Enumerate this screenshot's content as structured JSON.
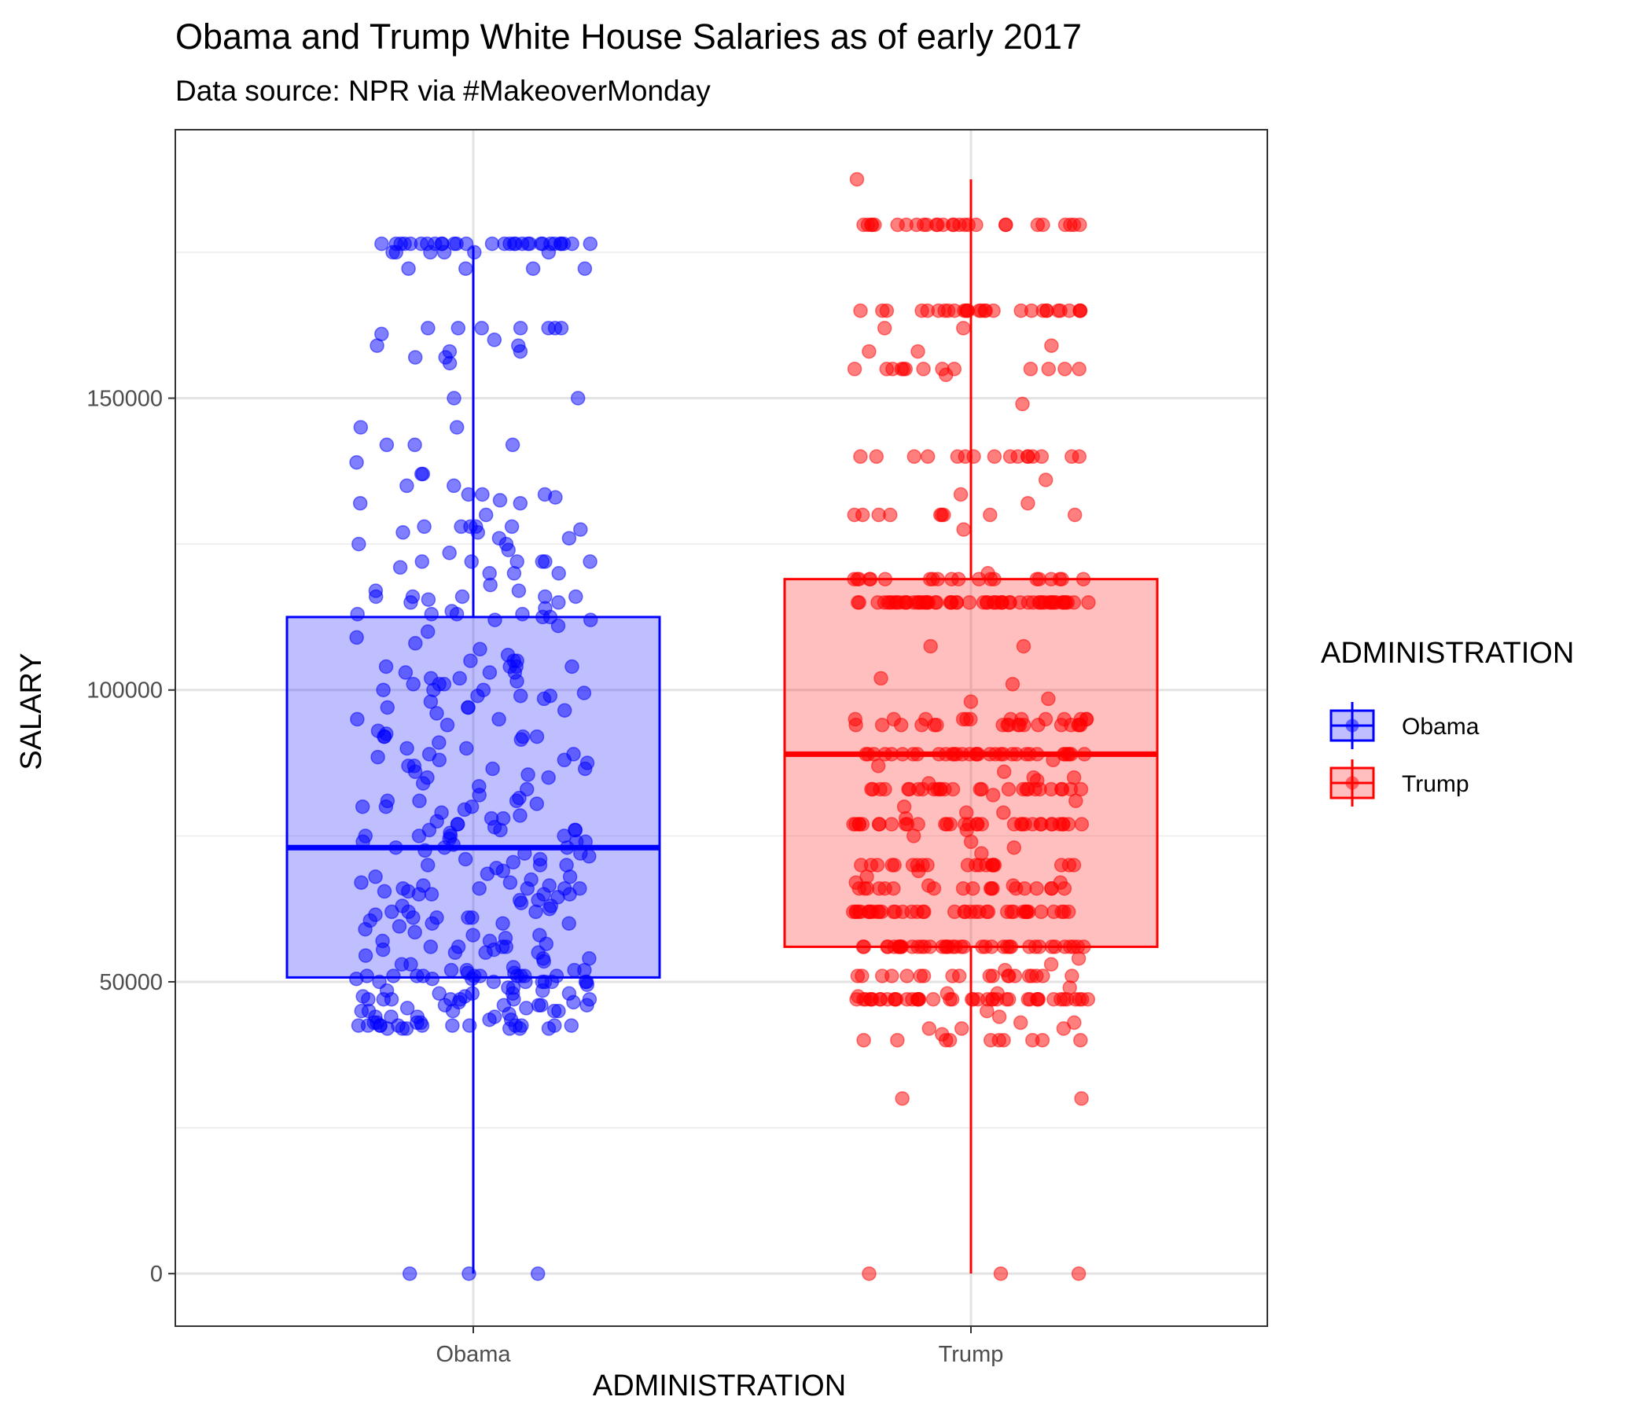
{
  "chart_data": {
    "type": "boxplot",
    "title": "Obama and Trump White House Salaries as of early 2017",
    "subtitle": "Data source: NPR via #MakeoverMonday",
    "xlabel": "ADMINISTRATION",
    "ylabel": "SALARY",
    "categories": [
      "Obama",
      "Trump"
    ],
    "ylim": [
      -9000,
      196000
    ],
    "yticks": [
      0,
      50000,
      100000,
      150000
    ],
    "ytick_labels": [
      "0",
      "50000",
      "100000",
      "150000"
    ],
    "grid": true,
    "legend": {
      "title": "ADMINISTRATION",
      "position": "right",
      "entries": [
        "Obama",
        "Trump"
      ]
    },
    "colors": {
      "Obama": "#0000ff",
      "Trump": "#ff0000"
    },
    "boxes": [
      {
        "name": "Obama",
        "min": 0,
        "q1": 50750,
        "median": 73000,
        "q3": 112500,
        "max": 176000
      },
      {
        "name": "Trump",
        "min": 0,
        "q1": 56000,
        "median": 89000,
        "q3": 119000,
        "max": 187500
      }
    ],
    "points": {
      "Obama": [
        176461,
        176461,
        176461,
        176461,
        176461,
        176461,
        176461,
        176461,
        176461,
        176461,
        176461,
        176461,
        176461,
        176461,
        176461,
        176461,
        176461,
        176461,
        176461,
        176461,
        176461,
        176461,
        176461,
        176461,
        176461,
        176461,
        176461,
        176461,
        176461,
        176461,
        175000,
        175000,
        175000,
        175000,
        175000,
        175000,
        172200,
        172200,
        172200,
        172200,
        162000,
        162000,
        162000,
        162000,
        162000,
        162000,
        162000,
        161000,
        160000,
        159000,
        159000,
        158000,
        158000,
        157000,
        157000,
        156000,
        150000,
        150000,
        145000,
        145000,
        142000,
        142000,
        142000,
        139000,
        137000,
        137000,
        135000,
        135000,
        133500,
        133500,
        133500,
        133000,
        132500,
        132000,
        132000,
        130000,
        128000,
        128000,
        128000,
        128000,
        128000,
        127500,
        127000,
        127000,
        126000,
        126000,
        125000,
        125000,
        124000,
        123500,
        122000,
        122000,
        122000,
        122000,
        122000,
        122000,
        121000,
        120000,
        120000,
        120000,
        118000,
        117000,
        117000,
        116000,
        116000,
        116000,
        116000,
        116000,
        115500,
        115000,
        115000,
        114000,
        113500,
        113000,
        113000,
        113000,
        113000,
        112500,
        112500,
        112000,
        112000,
        111000,
        110000,
        109000,
        108000,
        107000,
        106000,
        105000,
        105000,
        105000,
        104000,
        104000,
        104000,
        104000,
        103000,
        103000,
        103000,
        102000,
        102000,
        101500,
        101000,
        101000,
        101000,
        100000,
        100000,
        100000,
        99500,
        99000,
        99000,
        99000,
        98500,
        98000,
        97000,
        97000,
        97000,
        96500,
        96000,
        95000,
        95000,
        94000,
        93000,
        92500,
        92000,
        92000,
        92000,
        92000,
        91500,
        91000,
        90000,
        90000,
        89000,
        89000,
        88500,
        88000,
        88000,
        87500,
        87000,
        87000,
        86500,
        86500,
        86000,
        85500,
        85000,
        85000,
        84000,
        83500,
        83000,
        82000,
        81500,
        81000,
        81000,
        81000,
        80500,
        80000,
        80000,
        80000,
        79500,
        79000,
        78500,
        78000,
        78000,
        77500,
        77000,
        77000,
        76500,
        76000,
        76000,
        76000,
        76000,
        75500,
        75000,
        75000,
        75000,
        75000,
        74500,
        74000,
        74000,
        74000,
        73500,
        73000,
        73000,
        73000,
        72500,
        72000,
        72000,
        71500,
        71000,
        71000,
        70500,
        70000,
        70000,
        70000,
        69500,
        69000,
        68500,
        68000,
        68000,
        67500,
        67000,
        67000,
        66500,
        66500,
        66000,
        66000,
        66000,
        66000,
        66000,
        65500,
        65500,
        65000,
        65000,
        65000,
        65000,
        64500,
        64000,
        64000,
        63500,
        63000,
        63000,
        62500,
        62000,
        62000,
        62000,
        61500,
        61000,
        61000,
        61000,
        61000,
        60500,
        60000,
        60000,
        60000,
        59500,
        59000,
        58500,
        58000,
        58000,
        57500,
        57000,
        57000,
        56500,
        56000,
        56000,
        56000,
        56000,
        55500,
        55500,
        55000,
        55000,
        55000,
        54500,
        54000,
        54000,
        53500,
        53000,
        53000,
        52500,
        52000,
        52000,
        52000,
        52000,
        51500,
        51500,
        51000,
        51000,
        51000,
        51000,
        51000,
        51000,
        51000,
        51000,
        51000,
        51000,
        50500,
        50500,
        50500,
        50000,
        50000,
        50000,
        50000,
        50000,
        50000,
        50000,
        50000,
        49500,
        49000,
        49000,
        48500,
        48500,
        48000,
        48000,
        48000,
        48000,
        47500,
        47500,
        47000,
        47000,
        47000,
        47000,
        47000,
        47000,
        47000,
        46500,
        46500,
        46000,
        46000,
        46000,
        46000,
        46000,
        45500,
        45500,
        45000,
        45000,
        45000,
        45000,
        45000,
        44500,
        44000,
        44000,
        44000,
        44000,
        43500,
        43500,
        43000,
        43000,
        43000,
        43000,
        42500,
        42500,
        42500,
        42500,
        42500,
        42500,
        42500,
        42500,
        42500,
        42500,
        42500,
        42500,
        42000,
        42000,
        42000,
        42000,
        42000,
        42000,
        0,
        0,
        0
      ],
      "Trump": [
        187500,
        179700,
        179700,
        179700,
        179700,
        179700,
        179700,
        179700,
        179700,
        179700,
        179700,
        179700,
        179700,
        179700,
        179700,
        179700,
        179700,
        179700,
        179700,
        179700,
        179700,
        179700,
        179700,
        179700,
        179700,
        179700,
        179700,
        179700,
        165000,
        165000,
        165000,
        165000,
        165000,
        165000,
        165000,
        165000,
        165000,
        165000,
        165000,
        165000,
        165000,
        165000,
        165000,
        165000,
        165000,
        165000,
        165000,
        165000,
        165000,
        165000,
        165000,
        165000,
        165000,
        165000,
        165000,
        165000,
        165000,
        162000,
        162000,
        159000,
        158000,
        158000,
        155000,
        155000,
        155000,
        155000,
        155000,
        155000,
        155000,
        155000,
        155000,
        155000,
        155000,
        155000,
        155000,
        154000,
        149000,
        140000,
        140000,
        140000,
        140000,
        140000,
        140000,
        140000,
        140000,
        140000,
        140000,
        140000,
        140000,
        140000,
        140000,
        140000,
        140000,
        136000,
        133500,
        132000,
        130000,
        130000,
        130000,
        130000,
        130000,
        130000,
        130000,
        130000,
        130000,
        127500,
        120000,
        119000,
        119000,
        119000,
        119000,
        119000,
        119000,
        119000,
        119000,
        119000,
        119000,
        119000,
        119000,
        119000,
        119000,
        119000,
        119000,
        119000,
        119000,
        119000,
        119000,
        115000,
        115000,
        115000,
        115000,
        115000,
        115000,
        115000,
        115000,
        115000,
        115000,
        115000,
        115000,
        115000,
        115000,
        115000,
        115000,
        115000,
        115000,
        115000,
        115000,
        115000,
        115000,
        115000,
        115000,
        115000,
        115000,
        115000,
        115000,
        115000,
        115000,
        115000,
        115000,
        115000,
        115000,
        115000,
        115000,
        115000,
        115000,
        115000,
        115000,
        115000,
        115000,
        115000,
        115000,
        115000,
        115000,
        115000,
        115000,
        115000,
        115000,
        115000,
        115000,
        115000,
        115000,
        115000,
        115000,
        115000,
        115000,
        115000,
        115000,
        107500,
        107500,
        102000,
        101000,
        98500,
        98000,
        95000,
        95000,
        95000,
        95000,
        95000,
        95000,
        95000,
        95000,
        95000,
        95000,
        95000,
        95000,
        95000,
        94000,
        94000,
        94000,
        94000,
        94000,
        94000,
        94000,
        94000,
        94000,
        94000,
        94000,
        94000,
        94000,
        94000,
        94000,
        94000,
        94000,
        94000,
        89000,
        89000,
        89000,
        89000,
        89000,
        89000,
        89000,
        89000,
        89000,
        89000,
        89000,
        89000,
        89000,
        89000,
        89000,
        89000,
        89000,
        89000,
        89000,
        89000,
        89000,
        89000,
        89000,
        89000,
        89000,
        89000,
        89000,
        89000,
        89000,
        89000,
        89000,
        89000,
        89000,
        88000,
        87000,
        86000,
        85000,
        85000,
        84500,
        84000,
        83000,
        83000,
        83000,
        83000,
        83000,
        83000,
        83000,
        83000,
        83000,
        83000,
        83000,
        83000,
        83000,
        83000,
        83000,
        83000,
        83000,
        83000,
        83000,
        83000,
        83000,
        83000,
        83000,
        83000,
        83000,
        83000,
        83000,
        82000,
        81000,
        80000,
        79000,
        79000,
        78000,
        77000,
        77000,
        77000,
        77000,
        77000,
        77000,
        77000,
        77000,
        77000,
        77000,
        77000,
        77000,
        77000,
        77000,
        77000,
        77000,
        77000,
        77000,
        77000,
        77000,
        77000,
        77000,
        77000,
        77000,
        77000,
        77000,
        77000,
        77000,
        77000,
        77000,
        77000,
        77000,
        77000,
        76000,
        75000,
        74000,
        73000,
        72000,
        70000,
        70000,
        70000,
        70000,
        70000,
        70000,
        70000,
        70000,
        70000,
        70000,
        70000,
        70000,
        70000,
        70000,
        70000,
        70000,
        70000,
        70000,
        70000,
        70000,
        69000,
        68000,
        67000,
        67000,
        66500,
        66500,
        66000,
        66000,
        66000,
        66000,
        66000,
        66000,
        66000,
        66000,
        66000,
        66000,
        66000,
        66000,
        66000,
        66000,
        66000,
        66000,
        66000,
        66000,
        62000,
        62000,
        62000,
        62000,
        62000,
        62000,
        62000,
        62000,
        62000,
        62000,
        62000,
        62000,
        62000,
        62000,
        62000,
        62000,
        62000,
        62000,
        62000,
        62000,
        62000,
        62000,
        62000,
        62000,
        62000,
        62000,
        62000,
        62000,
        62000,
        62000,
        62000,
        62000,
        62000,
        62000,
        62000,
        62000,
        62000,
        62000,
        62000,
        62000,
        56000,
        56000,
        56000,
        56000,
        56000,
        56000,
        56000,
        56000,
        56000,
        56000,
        56000,
        56000,
        56000,
        56000,
        56000,
        56000,
        56000,
        56000,
        56000,
        56000,
        56000,
        56000,
        56000,
        56000,
        56000,
        56000,
        56000,
        56000,
        56000,
        56000,
        56000,
        56000,
        56000,
        56000,
        56000,
        56000,
        56000,
        56000,
        56000,
        56000,
        54000,
        53000,
        52000,
        51000,
        51000,
        51000,
        51000,
        51000,
        51000,
        51000,
        51000,
        51000,
        51000,
        51000,
        51000,
        51000,
        51000,
        51000,
        51000,
        51000,
        51000,
        51000,
        49000,
        48000,
        48000,
        47500,
        47000,
        47000,
        47000,
        47000,
        47000,
        47000,
        47000,
        47000,
        47000,
        47000,
        47000,
        47000,
        47000,
        47000,
        47000,
        47000,
        47000,
        47000,
        47000,
        47000,
        47000,
        47000,
        47000,
        47000,
        47000,
        47000,
        47000,
        47000,
        47000,
        47000,
        47000,
        47000,
        47000,
        47000,
        47000,
        47000,
        47000,
        47000,
        47000,
        47000,
        47000,
        47000,
        47000,
        45000,
        44000,
        43000,
        43000,
        42000,
        42000,
        42000,
        41000,
        40000,
        40000,
        40000,
        40000,
        40000,
        40000,
        40000,
        40000,
        40000,
        40000,
        30000,
        30000,
        0,
        0,
        0
      ]
    }
  }
}
